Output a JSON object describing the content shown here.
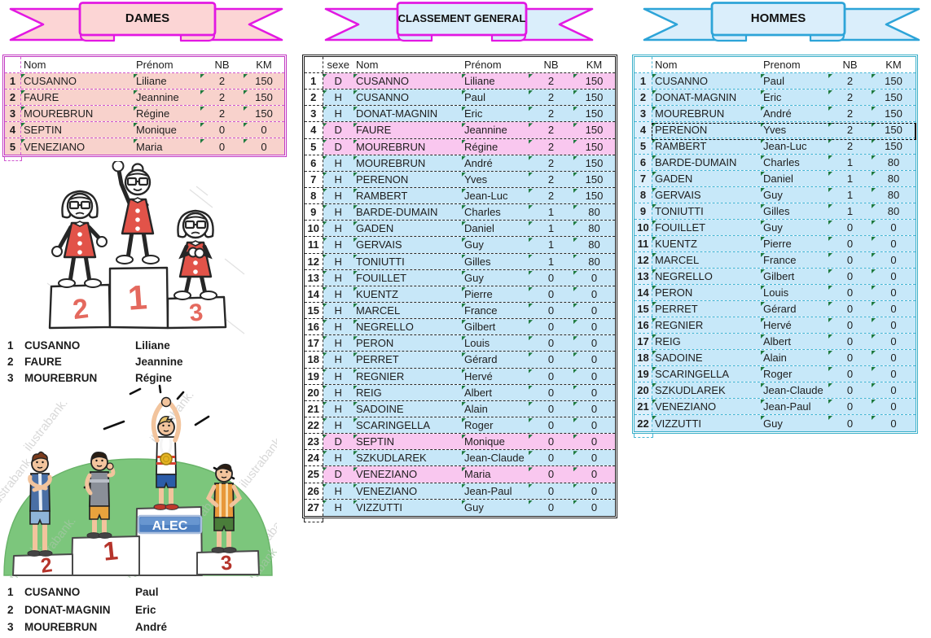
{
  "banners": {
    "dames": {
      "label": "DAMES"
    },
    "general": {
      "label": "CLASSEMENT GENERAL"
    },
    "hommes": {
      "label": "HOMMES"
    }
  },
  "tables": {
    "dames": {
      "headers": {
        "nom": "Nom",
        "prenom": "Prénom",
        "nb": "NB",
        "km": "KM"
      },
      "rows": [
        {
          "rank": "1",
          "nom": "CUSANNO",
          "prenom": "Liliane",
          "nb": "2",
          "km": "150"
        },
        {
          "rank": "2",
          "nom": "FAURE",
          "prenom": "Jeannine",
          "nb": "2",
          "km": "150"
        },
        {
          "rank": "3",
          "nom": "MOUREBRUN",
          "prenom": "Régine",
          "nb": "2",
          "km": "150"
        },
        {
          "rank": "4",
          "nom": "SEPTIN",
          "prenom": "Monique",
          "nb": "0",
          "km": "0"
        },
        {
          "rank": "5",
          "nom": "VENEZIANO",
          "prenom": "Maria",
          "nb": "0",
          "km": "0"
        }
      ]
    },
    "general": {
      "headers": {
        "sexe": "sexe",
        "nom": "Nom",
        "prenom": "Prénom",
        "nb": "NB",
        "km": "KM"
      },
      "rows": [
        {
          "rank": "1",
          "sexe": "D",
          "nom": "CUSANNO",
          "prenom": "Liliane",
          "nb": "2",
          "km": "150"
        },
        {
          "rank": "2",
          "sexe": "H",
          "nom": "CUSANNO",
          "prenom": "Paul",
          "nb": "2",
          "km": "150"
        },
        {
          "rank": "3",
          "sexe": "H",
          "nom": "DONAT-MAGNIN",
          "prenom": "Eric",
          "nb": "2",
          "km": "150"
        },
        {
          "rank": "4",
          "sexe": "D",
          "nom": "FAURE",
          "prenom": "Jeannine",
          "nb": "2",
          "km": "150"
        },
        {
          "rank": "5",
          "sexe": "D",
          "nom": "MOUREBRUN",
          "prenom": "Régine",
          "nb": "2",
          "km": "150"
        },
        {
          "rank": "6",
          "sexe": "H",
          "nom": "MOUREBRUN",
          "prenom": "André",
          "nb": "2",
          "km": "150"
        },
        {
          "rank": "7",
          "sexe": "H",
          "nom": "PERENON",
          "prenom": "Yves",
          "nb": "2",
          "km": "150"
        },
        {
          "rank": "8",
          "sexe": "H",
          "nom": "RAMBERT",
          "prenom": "Jean-Luc",
          "nb": "2",
          "km": "150"
        },
        {
          "rank": "9",
          "sexe": "H",
          "nom": "BARDE-DUMAIN",
          "prenom": "Charles",
          "nb": "1",
          "km": "80"
        },
        {
          "rank": "10",
          "sexe": "H",
          "nom": "GADEN",
          "prenom": "Daniel",
          "nb": "1",
          "km": "80"
        },
        {
          "rank": "11",
          "sexe": "H",
          "nom": "GERVAIS",
          "prenom": "Guy",
          "nb": "1",
          "km": "80"
        },
        {
          "rank": "12",
          "sexe": "H",
          "nom": "TONIUTTI",
          "prenom": "Gilles",
          "nb": "1",
          "km": "80"
        },
        {
          "rank": "13",
          "sexe": "H",
          "nom": "FOUILLET",
          "prenom": "Guy",
          "nb": "0",
          "km": "0"
        },
        {
          "rank": "14",
          "sexe": "H",
          "nom": "KUENTZ",
          "prenom": "Pierre",
          "nb": "0",
          "km": "0"
        },
        {
          "rank": "15",
          "sexe": "H",
          "nom": "MARCEL",
          "prenom": "France",
          "nb": "0",
          "km": "0"
        },
        {
          "rank": "16",
          "sexe": "H",
          "nom": "NEGRELLO",
          "prenom": "Gilbert",
          "nb": "0",
          "km": "0"
        },
        {
          "rank": "17",
          "sexe": "H",
          "nom": "PERON",
          "prenom": "Louis",
          "nb": "0",
          "km": "0"
        },
        {
          "rank": "18",
          "sexe": "H",
          "nom": "PERRET",
          "prenom": "Gérard",
          "nb": "0",
          "km": "0"
        },
        {
          "rank": "19",
          "sexe": "H",
          "nom": "REGNIER",
          "prenom": "Hervé",
          "nb": "0",
          "km": "0"
        },
        {
          "rank": "20",
          "sexe": "H",
          "nom": "REIG",
          "prenom": "Albert",
          "nb": "0",
          "km": "0"
        },
        {
          "rank": "21",
          "sexe": "H",
          "nom": "SADOINE",
          "prenom": "Alain",
          "nb": "0",
          "km": "0"
        },
        {
          "rank": "22",
          "sexe": "H",
          "nom": "SCARINGELLA",
          "prenom": "Roger",
          "nb": "0",
          "km": "0"
        },
        {
          "rank": "23",
          "sexe": "D",
          "nom": "SEPTIN",
          "prenom": "Monique",
          "nb": "0",
          "km": "0"
        },
        {
          "rank": "24",
          "sexe": "H",
          "nom": "SZKUDLAREK",
          "prenom": "Jean-Claude",
          "nb": "0",
          "km": "0"
        },
        {
          "rank": "25",
          "sexe": "D",
          "nom": "VENEZIANO",
          "prenom": "Maria",
          "nb": "0",
          "km": "0"
        },
        {
          "rank": "26",
          "sexe": "H",
          "nom": "VENEZIANO",
          "prenom": "Jean-Paul",
          "nb": "0",
          "km": "0"
        },
        {
          "rank": "27",
          "sexe": "H",
          "nom": "VIZZUTTI",
          "prenom": "Guy",
          "nb": "0",
          "km": "0"
        }
      ]
    },
    "hommes": {
      "headers": {
        "nom": "Nom",
        "prenom": "Prenom",
        "nb": "NB",
        "km": "KM"
      },
      "rows": [
        {
          "rank": "1",
          "nom": "CUSANNO",
          "prenom": "Paul",
          "nb": "2",
          "km": "150"
        },
        {
          "rank": "2",
          "nom": "DONAT-MAGNIN",
          "prenom": "Eric",
          "nb": "2",
          "km": "150"
        },
        {
          "rank": "3",
          "nom": "MOUREBRUN",
          "prenom": "André",
          "nb": "2",
          "km": "150"
        },
        {
          "rank": "4",
          "nom": "PERENON",
          "prenom": "Yves",
          "nb": "2",
          "km": "150"
        },
        {
          "rank": "5",
          "nom": "RAMBERT",
          "prenom": "Jean-Luc",
          "nb": "2",
          "km": "150"
        },
        {
          "rank": "6",
          "nom": "BARDE-DUMAIN",
          "prenom": "Charles",
          "nb": "1",
          "km": "80"
        },
        {
          "rank": "7",
          "nom": "GADEN",
          "prenom": "Daniel",
          "nb": "1",
          "km": "80"
        },
        {
          "rank": "8",
          "nom": "GERVAIS",
          "prenom": "Guy",
          "nb": "1",
          "km": "80"
        },
        {
          "rank": "9",
          "nom": "TONIUTTI",
          "prenom": "Gilles",
          "nb": "1",
          "km": "80"
        },
        {
          "rank": "10",
          "nom": "FOUILLET",
          "prenom": "Guy",
          "nb": "0",
          "km": "0"
        },
        {
          "rank": "11",
          "nom": "KUENTZ",
          "prenom": "Pierre",
          "nb": "0",
          "km": "0"
        },
        {
          "rank": "12",
          "nom": "MARCEL",
          "prenom": "France",
          "nb": "0",
          "km": "0"
        },
        {
          "rank": "13",
          "nom": "NEGRELLO",
          "prenom": "Gilbert",
          "nb": "0",
          "km": "0"
        },
        {
          "rank": "14",
          "nom": "PERON",
          "prenom": "Louis",
          "nb": "0",
          "km": "0"
        },
        {
          "rank": "15",
          "nom": "PERRET",
          "prenom": "Gérard",
          "nb": "0",
          "km": "0"
        },
        {
          "rank": "16",
          "nom": "REGNIER",
          "prenom": "Hervé",
          "nb": "0",
          "km": "0"
        },
        {
          "rank": "17",
          "nom": "REIG",
          "prenom": "Albert",
          "nb": "0",
          "km": "0"
        },
        {
          "rank": "18",
          "nom": "SADOINE",
          "prenom": "Alain",
          "nb": "0",
          "km": "0"
        },
        {
          "rank": "19",
          "nom": "SCARINGELLA",
          "prenom": "Roger",
          "nb": "0",
          "km": "0"
        },
        {
          "rank": "20",
          "nom": "SZKUDLAREK",
          "prenom": "Jean-Claude",
          "nb": "0",
          "km": "0"
        },
        {
          "rank": "21",
          "nom": "VENEZIANO",
          "prenom": "Jean-Paul",
          "nb": "0",
          "km": "0"
        },
        {
          "rank": "22",
          "nom": "VIZZUTTI",
          "prenom": "Guy",
          "nb": "0",
          "km": "0"
        }
      ]
    }
  },
  "podiums": {
    "women": {
      "place_left": "2",
      "place_center": "1",
      "place_right": "3"
    },
    "men": {
      "place_left": "2",
      "place_center": "1",
      "place_right": "3",
      "sign": "ALEC",
      "watermark": "ilustrabank."
    }
  },
  "top3": {
    "dames": [
      {
        "rank": "1",
        "nom": "CUSANNO",
        "prenom": "Liliane"
      },
      {
        "rank": "2",
        "nom": "FAURE",
        "prenom": "Jeannine"
      },
      {
        "rank": "3",
        "nom": "MOUREBRUN",
        "prenom": "Régine"
      }
    ],
    "hommes": [
      {
        "rank": "1",
        "nom": "CUSANNO",
        "prenom": "Paul"
      },
      {
        "rank": "2",
        "nom": "DONAT-MAGNIN",
        "prenom": "Eric"
      },
      {
        "rank": "3",
        "nom": "MOUREBRUN",
        "prenom": "André"
      }
    ]
  },
  "colors": {
    "magenta_border": "#e218e2",
    "dames_fill": "#f8d2cc",
    "blue_fill": "#daeefb",
    "hommes_border": "#2da4d8",
    "general_pink": "#f9c7ef",
    "general_blue": "#c7e7f8",
    "green_indicator": "#1e7a3e"
  }
}
